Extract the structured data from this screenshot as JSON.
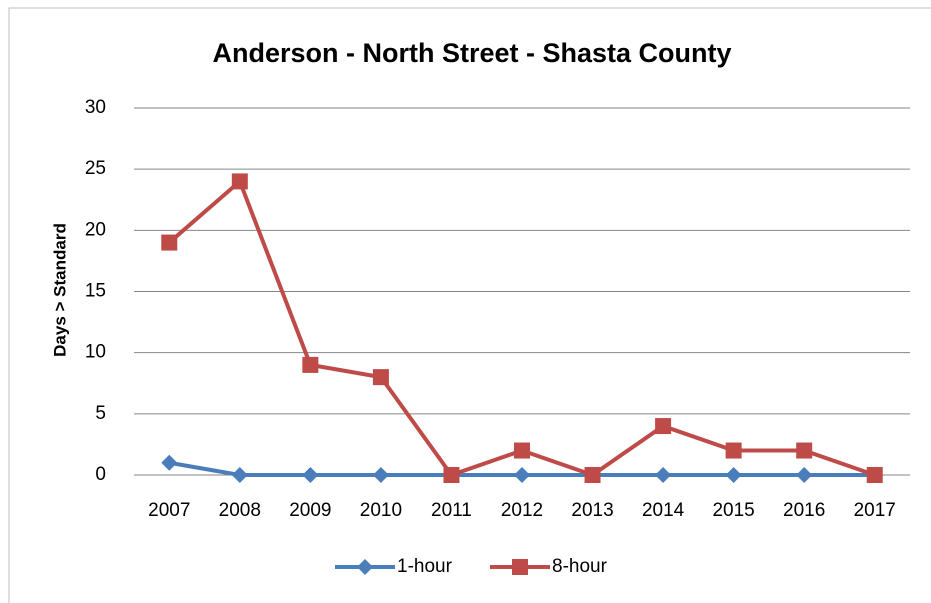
{
  "chart_data": {
    "type": "line",
    "title": "Anderson - North Street - Shasta County",
    "y_label": "Days > Standard",
    "categories": [
      "2007",
      "2008",
      "2009",
      "2010",
      "2011",
      "2012",
      "2013",
      "2014",
      "2015",
      "2016",
      "2017"
    ],
    "series": [
      {
        "name": "1-hour",
        "color": "#4a7ebb",
        "marker": "diamond",
        "values": [
          1,
          0,
          0,
          0,
          0,
          0,
          0,
          0,
          0,
          0,
          0
        ]
      },
      {
        "name": "8-hour",
        "color": "#be4b48",
        "marker": "square",
        "values": [
          19,
          24,
          9,
          8,
          0,
          2,
          0,
          4,
          2,
          2,
          0
        ]
      }
    ],
    "ylim": [
      0,
      30
    ],
    "yticks": [
      0,
      5,
      10,
      15,
      20,
      25,
      30
    ],
    "grid": true,
    "legend": "bottom"
  }
}
